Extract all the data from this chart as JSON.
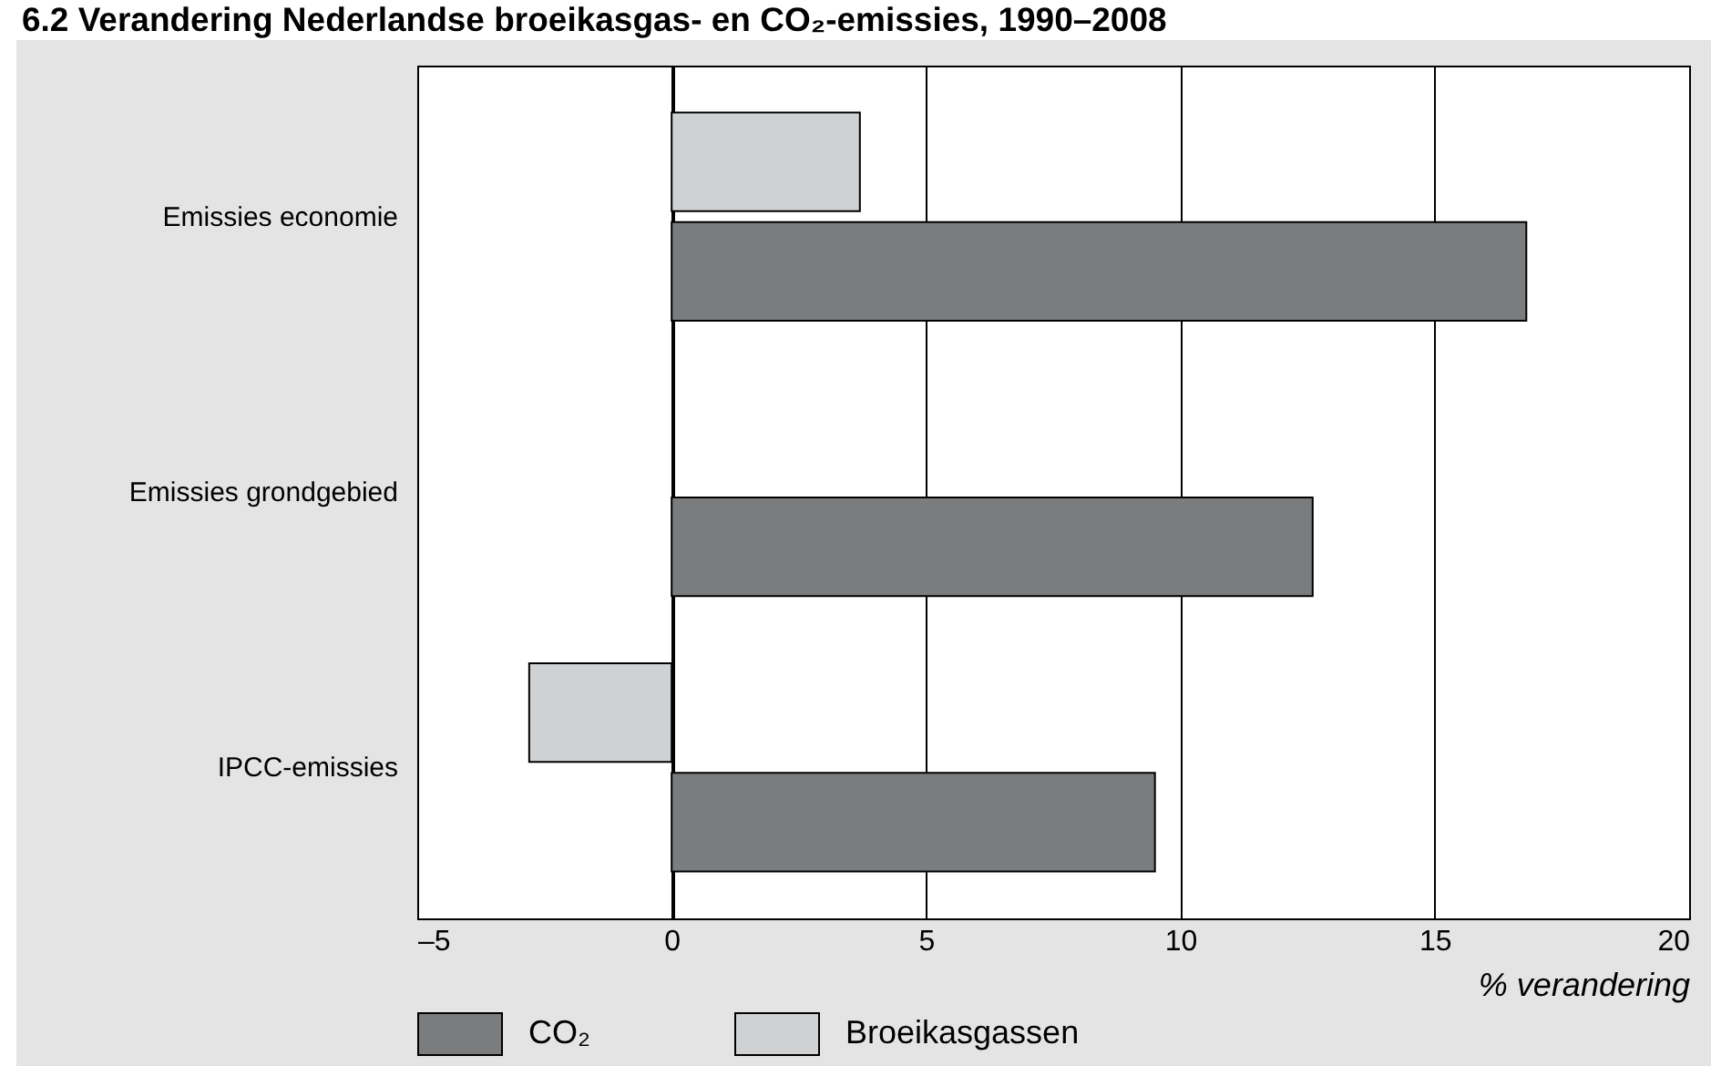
{
  "chart_data": {
    "type": "bar",
    "orientation": "horizontal",
    "title": "6.2 Verandering Nederlandse broeikasgas- en CO₂-emissies, 1990–2008",
    "xlabel": "% verandering",
    "categories": [
      "Emissies economie",
      "Emissies grondgebied",
      "IPCC-emissies"
    ],
    "series": [
      {
        "name": "CO₂",
        "color": "#7b7c7e",
        "values": [
          16.8,
          12.6,
          9.5
        ]
      },
      {
        "name": "Broeikasgassen",
        "color": "#d0d1d3",
        "values": [
          3.7,
          null,
          -2.8
        ]
      }
    ],
    "xlim": [
      -5,
      20
    ],
    "xticks": [
      {
        "value": -5,
        "label": "–5"
      },
      0,
      5,
      10,
      15,
      20
    ],
    "grid": "x",
    "legend": "bottom left"
  }
}
